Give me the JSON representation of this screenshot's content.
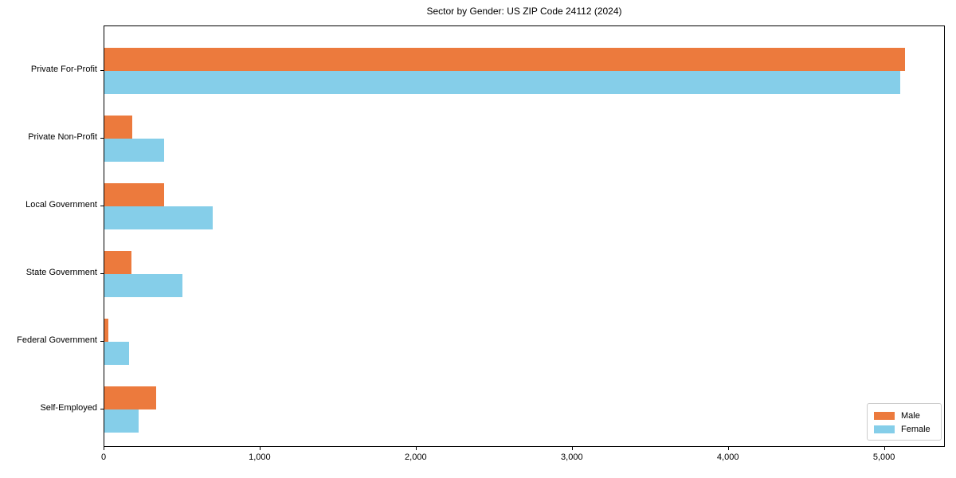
{
  "chart_data": {
    "type": "bar",
    "orientation": "horizontal",
    "title": "Sector by Gender: US ZIP Code 24112 (2024)",
    "categories": [
      "Private For-Profit",
      "Private Non-Profit",
      "Local Government",
      "State Government",
      "Federal Government",
      "Self-Employed"
    ],
    "series": [
      {
        "name": "Male",
        "color": "#ec7a3d",
        "values": [
          5130,
          180,
          385,
          175,
          25,
          330
        ]
      },
      {
        "name": "Female",
        "color": "#85cee9",
        "values": [
          5100,
          385,
          695,
          500,
          160,
          220
        ]
      }
    ],
    "xlim": [
      0,
      5390
    ],
    "x_ticks": [
      0,
      1000,
      2000,
      3000,
      4000,
      5000
    ],
    "x_tick_labels": [
      "0",
      "1,000",
      "2,000",
      "3,000",
      "4,000",
      "5,000"
    ],
    "xlabel": "",
    "ylabel": "",
    "grid": false,
    "legend_position": "lower right"
  }
}
